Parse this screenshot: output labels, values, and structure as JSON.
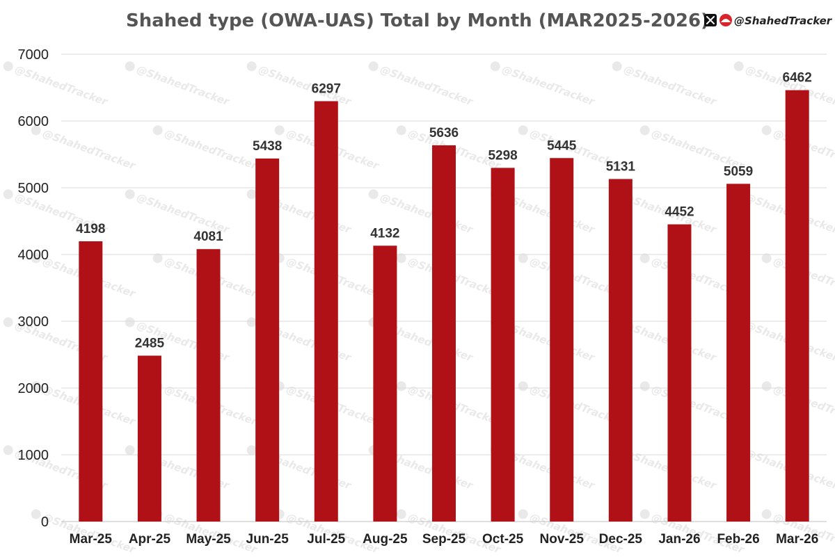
{
  "header": {
    "handle": "@ShahedTracker"
  },
  "colors": {
    "bar": "#b01116",
    "grid": "#d9d9d9",
    "axis": "#bfbfbf",
    "title": "#555555",
    "logo_red": "#d8252b",
    "watermark": "#e9e9e9"
  },
  "icons": {
    "social": "x-logo-icon",
    "brand": "shahed-tracker-logo-icon"
  },
  "chart_data": {
    "type": "bar",
    "title": "Shahed type (OWA-UAS) Total by Month (MAR2025-2026)",
    "xlabel": "",
    "ylabel": "",
    "categories": [
      "Mar-25",
      "Apr-25",
      "May-25",
      "Jun-25",
      "Jul-25",
      "Aug-25",
      "Sep-25",
      "Oct-25",
      "Nov-25",
      "Dec-25",
      "Jan-26",
      "Feb-26",
      "Mar-26"
    ],
    "values": [
      4198,
      2485,
      4081,
      5438,
      6297,
      4132,
      5636,
      5298,
      5445,
      5131,
      4452,
      5059,
      6462
    ],
    "data_labels": [
      "4198",
      "2485",
      "4081",
      "5438",
      "6297",
      "4132",
      "5636",
      "5298",
      "5445",
      "5131",
      "4452",
      "5059",
      "6462"
    ],
    "ylim": [
      0,
      7000
    ],
    "yticks": [
      0,
      1000,
      2000,
      3000,
      4000,
      5000,
      6000,
      7000
    ],
    "grid": true,
    "legend": "none",
    "watermark": "@ShahedTracker"
  }
}
